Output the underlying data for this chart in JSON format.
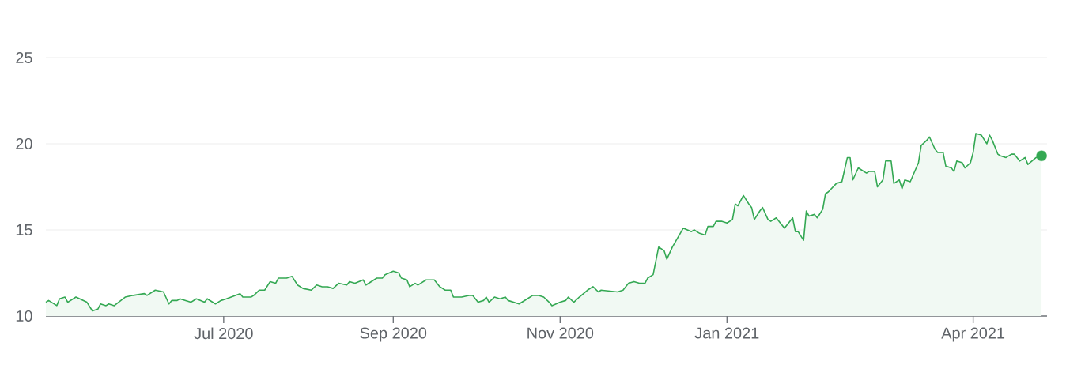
{
  "chart_data": {
    "type": "area",
    "grid": "y",
    "xlim": [
      "2020-04-27",
      "2021-04-28"
    ],
    "ylim": [
      10,
      25
    ],
    "yticks": [
      10,
      15,
      20,
      25
    ],
    "xticks": [
      {
        "value": "2020-07-01",
        "label": "Jul 2020"
      },
      {
        "value": "2020-09-01",
        "label": "Sep 2020"
      },
      {
        "value": "2020-11-01",
        "label": "Nov 2020"
      },
      {
        "value": "2021-01-01",
        "label": "Jan 2021"
      },
      {
        "value": "2021-04-01",
        "label": "Apr 2021"
      }
    ],
    "series": [
      {
        "color": "#34a853",
        "x": [
          "2020-04-27",
          "2020-04-28",
          "2020-05-01",
          "2020-05-02",
          "2020-05-04",
          "2020-05-05",
          "2020-05-08",
          "2020-05-12",
          "2020-05-14",
          "2020-05-16",
          "2020-05-17",
          "2020-05-19",
          "2020-05-20",
          "2020-05-22",
          "2020-05-26",
          "2020-05-29",
          "2020-06-02",
          "2020-06-03",
          "2020-06-06",
          "2020-06-09",
          "2020-06-11",
          "2020-06-12",
          "2020-06-14",
          "2020-06-15",
          "2020-06-19",
          "2020-06-21",
          "2020-06-24",
          "2020-06-25",
          "2020-06-28",
          "2020-06-30",
          "2020-07-02",
          "2020-07-07",
          "2020-07-08",
          "2020-07-11",
          "2020-07-12",
          "2020-07-14",
          "2020-07-16",
          "2020-07-18",
          "2020-07-20",
          "2020-07-21",
          "2020-07-24",
          "2020-07-26",
          "2020-07-28",
          "2020-07-30",
          "2020-08-02",
          "2020-08-04",
          "2020-08-06",
          "2020-08-08",
          "2020-08-10",
          "2020-08-12",
          "2020-08-15",
          "2020-08-16",
          "2020-08-18",
          "2020-08-21",
          "2020-08-22",
          "2020-08-26",
          "2020-08-28",
          "2020-08-29",
          "2020-09-01",
          "2020-09-03",
          "2020-09-04",
          "2020-09-06",
          "2020-09-07",
          "2020-09-09",
          "2020-09-10",
          "2020-09-11",
          "2020-09-13",
          "2020-09-16",
          "2020-09-18",
          "2020-09-20",
          "2020-09-22",
          "2020-09-23",
          "2020-09-26",
          "2020-09-29",
          "2020-09-30",
          "2020-10-02",
          "2020-10-04",
          "2020-10-05",
          "2020-10-06",
          "2020-10-08",
          "2020-10-10",
          "2020-10-12",
          "2020-10-13",
          "2020-10-17",
          "2020-10-20",
          "2020-10-22",
          "2020-10-24",
          "2020-10-26",
          "2020-10-28",
          "2020-10-29",
          "2020-11-01",
          "2020-11-03",
          "2020-11-04",
          "2020-11-06",
          "2020-11-08",
          "2020-11-11",
          "2020-11-13",
          "2020-11-15",
          "2020-11-16",
          "2020-11-22",
          "2020-11-24",
          "2020-11-26",
          "2020-11-28",
          "2020-11-30",
          "2020-12-02",
          "2020-12-03",
          "2020-12-05",
          "2020-12-07",
          "2020-12-09",
          "2020-12-10",
          "2020-12-12",
          "2020-12-16",
          "2020-12-19",
          "2020-12-20",
          "2020-12-22",
          "2020-12-24",
          "2020-12-25",
          "2020-12-27",
          "2020-12-28",
          "2020-12-30",
          "2021-01-01",
          "2021-01-03",
          "2021-01-04",
          "2021-01-05",
          "2021-01-07",
          "2021-01-09",
          "2021-01-10",
          "2021-01-11",
          "2021-01-13",
          "2021-01-14",
          "2021-01-16",
          "2021-01-17",
          "2021-01-19",
          "2021-01-22",
          "2021-01-23",
          "2021-01-25",
          "2021-01-26",
          "2021-01-27",
          "2021-01-29",
          "2021-01-30",
          "2021-01-31",
          "2021-02-02",
          "2021-02-03",
          "2021-02-05",
          "2021-02-06",
          "2021-02-07",
          "2021-02-10",
          "2021-02-12",
          "2021-02-14",
          "2021-02-15",
          "2021-02-16",
          "2021-02-18",
          "2021-02-19",
          "2021-02-21",
          "2021-02-22",
          "2021-02-24",
          "2021-02-25",
          "2021-02-27",
          "2021-02-28",
          "2021-03-02",
          "2021-03-03",
          "2021-03-05",
          "2021-03-06",
          "2021-03-07",
          "2021-03-09",
          "2021-03-12",
          "2021-03-13",
          "2021-03-15",
          "2021-03-16",
          "2021-03-18",
          "2021-03-19",
          "2021-03-21",
          "2021-03-22",
          "2021-03-24",
          "2021-03-25",
          "2021-03-26",
          "2021-03-28",
          "2021-03-29",
          "2021-03-31",
          "2021-04-01",
          "2021-04-02",
          "2021-04-04",
          "2021-04-06",
          "2021-04-07",
          "2021-04-08",
          "2021-04-10",
          "2021-04-11",
          "2021-04-13",
          "2021-04-15",
          "2021-04-16",
          "2021-04-18",
          "2021-04-20",
          "2021-04-21",
          "2021-04-24",
          "2021-04-26"
        ],
        "values": [
          10.8,
          10.9,
          10.6,
          11.0,
          11.1,
          10.8,
          11.1,
          10.8,
          10.3,
          10.4,
          10.7,
          10.6,
          10.7,
          10.6,
          11.1,
          11.2,
          11.3,
          11.2,
          11.5,
          11.4,
          10.7,
          10.9,
          10.9,
          11.0,
          10.8,
          11.0,
          10.8,
          11.0,
          10.7,
          10.9,
          11.0,
          11.3,
          11.1,
          11.1,
          11.2,
          11.5,
          11.5,
          12.0,
          11.9,
          12.2,
          12.2,
          12.3,
          11.8,
          11.6,
          11.5,
          11.8,
          11.7,
          11.7,
          11.6,
          11.9,
          11.8,
          12.0,
          11.9,
          12.1,
          11.8,
          12.2,
          12.2,
          12.4,
          12.6,
          12.5,
          12.2,
          12.1,
          11.7,
          11.9,
          11.8,
          11.9,
          12.1,
          12.1,
          11.7,
          11.5,
          11.5,
          11.1,
          11.1,
          11.2,
          11.2,
          10.8,
          10.9,
          11.1,
          10.8,
          11.1,
          11.0,
          11.1,
          10.9,
          10.7,
          11.0,
          11.2,
          11.2,
          11.1,
          10.8,
          10.6,
          10.8,
          10.9,
          11.1,
          10.8,
          11.1,
          11.5,
          11.7,
          11.4,
          11.5,
          11.4,
          11.5,
          11.9,
          12.0,
          11.9,
          11.9,
          12.2,
          12.4,
          14.0,
          13.8,
          13.3,
          14.0,
          15.1,
          14.9,
          15.0,
          14.8,
          14.7,
          15.2,
          15.2,
          15.5,
          15.5,
          15.4,
          15.6,
          16.5,
          16.4,
          17.0,
          16.5,
          16.3,
          15.6,
          16.1,
          16.3,
          15.6,
          15.5,
          15.7,
          15.1,
          15.3,
          15.7,
          14.9,
          14.9,
          14.4,
          16.1,
          15.8,
          15.9,
          15.7,
          16.2,
          17.1,
          17.2,
          17.7,
          17.8,
          19.2,
          19.2,
          17.9,
          18.6,
          18.5,
          18.3,
          18.4,
          18.4,
          17.5,
          17.9,
          19.0,
          19.0,
          17.7,
          17.9,
          17.4,
          17.9,
          17.8,
          18.9,
          19.9,
          20.2,
          20.4,
          19.7,
          19.5,
          19.5,
          18.7,
          18.6,
          18.4,
          19.0,
          18.9,
          18.6,
          18.9,
          19.5,
          20.6,
          20.5,
          20.0,
          20.5,
          20.2,
          19.4,
          19.3,
          19.2,
          19.4,
          19.4,
          19.0,
          19.2,
          18.8,
          19.2,
          19.3
        ]
      },
      {
        "type": "scatter",
        "color": "#34a853",
        "x": [
          "2021-04-26"
        ],
        "values": [
          19.3
        ]
      }
    ]
  }
}
